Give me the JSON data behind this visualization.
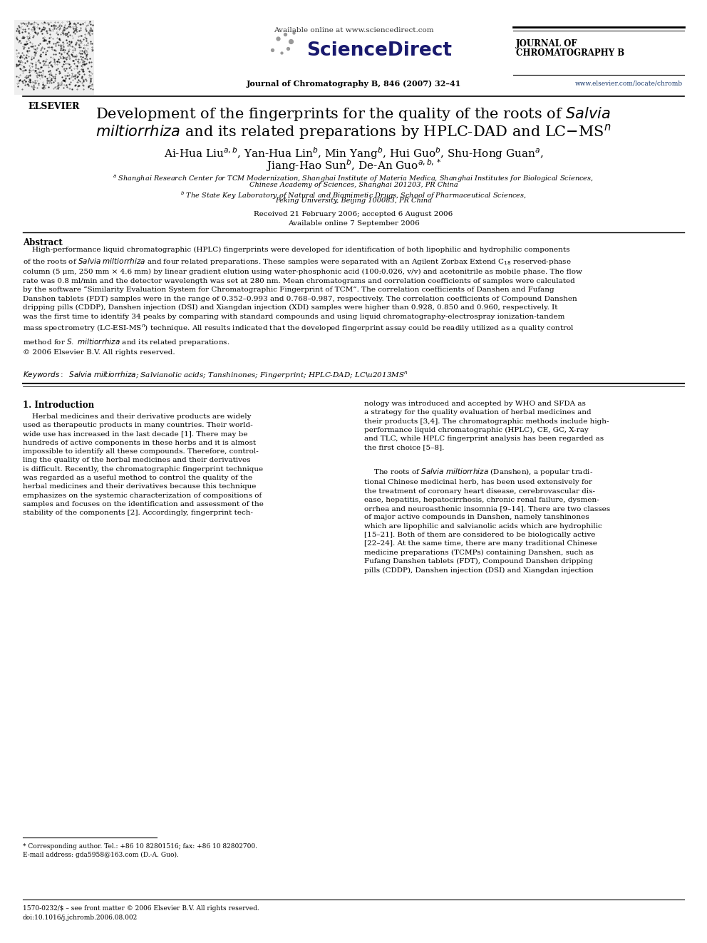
{
  "bg_color": "#ffffff",
  "page_width": 9.92,
  "page_height": 13.23,
  "header": {
    "available_online": "Available online at www.sciencedirect.com",
    "journal_name_line1": "JOURNAL OF",
    "journal_name_line2": "CHROMATOGRAPHY B",
    "journal_info": "Journal of Chromatography B, 846 (2007) 32–41",
    "website": "www.elsevier.com/locate/chromb"
  },
  "received": "Received 21 February 2006; accepted 6 August 2006",
  "available": "Available online 7 September 2006",
  "abstract_title": "Abstract",
  "copyright": "© 2006 Elsevier B.V. All rights reserved.",
  "section1_title": "1. Introduction",
  "footnote_star": "* Corresponding author. Tel.: +86 10 82801516; fax: +86 10 82802700.",
  "footnote_email": "E-mail address: gda5958@163.com (D.-A. Guo).",
  "footer_issn": "1570-0232/$ – see front matter © 2006 Elsevier B.V. All rights reserved.",
  "footer_doi": "doi:10.1016/j.jchromb.2006.08.002"
}
